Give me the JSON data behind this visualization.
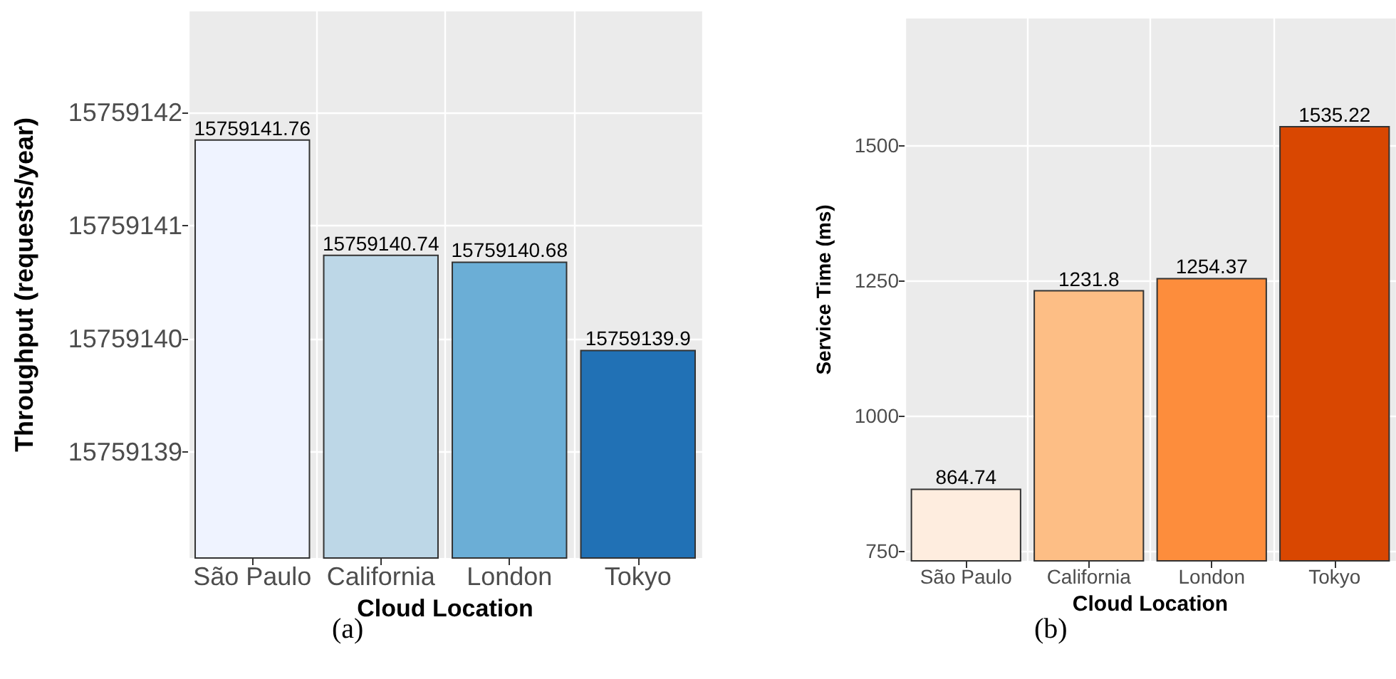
{
  "chart_data": [
    {
      "type": "bar",
      "categories": [
        "São Paulo",
        "California",
        "London",
        "Tokyo"
      ],
      "values": [
        15759141.76,
        15759140.74,
        15759140.68,
        15759139.9
      ],
      "colors": [
        "#eff3ff",
        "#bdd7e7",
        "#6baed6",
        "#2171b5"
      ],
      "xlabel": "Cloud Location",
      "ylabel": "Throughput (requests/year)",
      "ylim": [
        15759138.06,
        15759142.89
      ],
      "yticks": [
        15759139,
        15759140,
        15759141,
        15759142
      ],
      "grid": true,
      "data_labels": true,
      "annotations": [
        "(a)"
      ]
    },
    {
      "type": "bar",
      "categories": [
        "São Paulo",
        "California",
        "London",
        "Tokyo"
      ],
      "values": [
        864.74,
        1231.8,
        1254.37,
        1535.22
      ],
      "colors": [
        "#feeddf",
        "#fdbe85",
        "#fd8d3c",
        "#d94701"
      ],
      "xlabel": "Cloud Location",
      "ylabel": "Service Time (ms)",
      "ylim": [
        731,
        1734
      ],
      "yticks": [
        750,
        1000,
        1250,
        1500
      ],
      "grid": true,
      "data_labels": true,
      "annotations": [
        "(b)"
      ]
    }
  ]
}
